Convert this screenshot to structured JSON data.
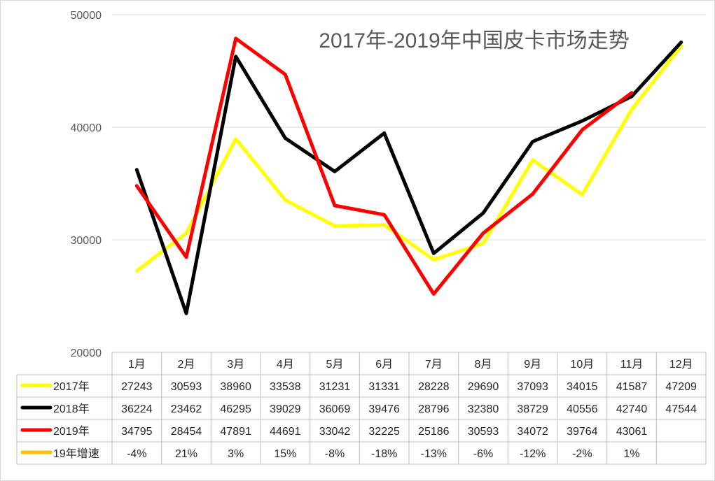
{
  "chart_data": {
    "type": "line",
    "title": "2017年-2019年中国皮卡市场走势",
    "categories": [
      "1月",
      "2月",
      "3月",
      "4月",
      "5月",
      "6月",
      "7月",
      "8月",
      "9月",
      "10月",
      "11月",
      "12月"
    ],
    "ylim": [
      20000,
      50000
    ],
    "yticks": [
      "20000",
      "30000",
      "40000",
      "50000"
    ],
    "grid": true,
    "series": [
      {
        "name": "2017年",
        "color": "#ffff00",
        "values": [
          27243,
          30593,
          38960,
          33538,
          31231,
          31331,
          28228,
          29690,
          37093,
          34015,
          41587,
          47209
        ],
        "labels": [
          "27243",
          "30593",
          "38960",
          "33538",
          "31231",
          "31331",
          "28228",
          "29690",
          "37093",
          "34015",
          "41587",
          "47209"
        ]
      },
      {
        "name": "2018年",
        "color": "#000000",
        "values": [
          36224,
          23462,
          46295,
          39029,
          36069,
          39476,
          28796,
          32380,
          38729,
          40556,
          42740,
          47544
        ],
        "labels": [
          "36224",
          "23462",
          "46295",
          "39029",
          "36069",
          "39476",
          "28796",
          "32380",
          "38729",
          "40556",
          "42740",
          "47544"
        ]
      },
      {
        "name": "2019年",
        "color": "#ff0000",
        "values": [
          34795,
          28454,
          47891,
          44691,
          33042,
          32225,
          25186,
          30593,
          34072,
          39764,
          43061,
          null
        ],
        "labels": [
          "34795",
          "28454",
          "47891",
          "44691",
          "33042",
          "32225",
          "25186",
          "30593",
          "34072",
          "39764",
          "43061",
          ""
        ]
      }
    ],
    "growth": {
      "name": "19年增速",
      "color": "#ffc000",
      "labels": [
        "-4%",
        "21%",
        "3%",
        "15%",
        "-8%",
        "-18%",
        "-13%",
        "-6%",
        "-12%",
        "-2%",
        "1%",
        ""
      ]
    }
  }
}
